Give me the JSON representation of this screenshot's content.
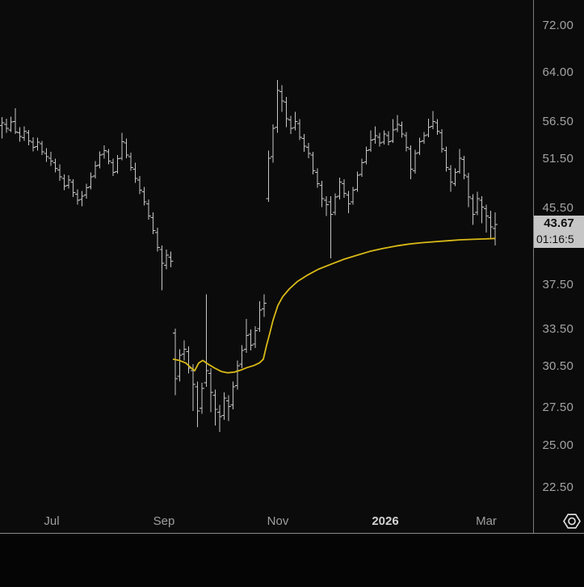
{
  "chart_data": {
    "type": "bar",
    "subtype": "ohlc-bars",
    "title": "",
    "scale": "log",
    "price_axis_ticks": [
      {
        "label": "72.00",
        "value": 72.0
      },
      {
        "label": "64.00",
        "value": 64.0
      },
      {
        "label": "56.50",
        "value": 56.5
      },
      {
        "label": "51.50",
        "value": 51.5
      },
      {
        "label": "45.50",
        "value": 45.5
      },
      {
        "label": "37.50",
        "value": 37.5
      },
      {
        "label": "33.50",
        "value": 33.5
      },
      {
        "label": "30.50",
        "value": 30.5
      },
      {
        "label": "27.50",
        "value": 27.5
      },
      {
        "label": "25.00",
        "value": 25.0
      },
      {
        "label": "22.50",
        "value": 22.5
      }
    ],
    "time_axis_labels": [
      {
        "label": "Jul",
        "emphasis": false
      },
      {
        "label": "Sep",
        "emphasis": false
      },
      {
        "label": "Nov",
        "emphasis": false
      },
      {
        "label": "2026",
        "emphasis": true
      },
      {
        "label": "Mar",
        "emphasis": false
      }
    ],
    "last_price": {
      "price_label": "43.67",
      "time_label": "01:16:5",
      "value": 43.67
    },
    "colors": {
      "background": "#0b0b0b",
      "bar": "#c6c6c6",
      "overlay_line": "#d9ba17",
      "axis_text": "#a3a3a3",
      "price_tag_bg": "#c6c6c6",
      "price_tag_text": "#101010"
    },
    "bars_ohlc": [
      [
        56.0,
        57.2,
        54.2,
        56.4
      ],
      [
        56.2,
        57.0,
        55.0,
        55.6
      ],
      [
        55.4,
        57.3,
        55.1,
        56.5
      ],
      [
        56.6,
        58.5,
        54.8,
        55.1
      ],
      [
        55.0,
        55.8,
        53.8,
        54.5
      ],
      [
        54.3,
        55.9,
        53.9,
        55.2
      ],
      [
        55.0,
        55.4,
        53.3,
        53.9
      ],
      [
        53.7,
        54.4,
        52.5,
        53.0
      ],
      [
        53.1,
        54.3,
        52.6,
        53.7
      ],
      [
        53.5,
        53.9,
        52.0,
        52.4
      ],
      [
        52.2,
        52.9,
        51.1,
        51.8
      ],
      [
        51.6,
        52.4,
        50.6,
        51.2
      ],
      [
        51.0,
        51.5,
        49.8,
        50.3
      ],
      [
        50.1,
        50.8,
        48.7,
        49.2
      ],
      [
        49.0,
        49.5,
        47.6,
        48.1
      ],
      [
        48.2,
        49.4,
        47.8,
        48.8
      ],
      [
        48.6,
        48.9,
        46.8,
        47.3
      ],
      [
        47.1,
        47.7,
        45.9,
        46.4
      ],
      [
        46.5,
        47.5,
        45.7,
        46.9
      ],
      [
        47.0,
        48.4,
        46.6,
        47.9
      ],
      [
        48.0,
        49.8,
        47.7,
        49.2
      ],
      [
        49.3,
        51.2,
        49.0,
        50.6
      ],
      [
        50.7,
        52.5,
        50.3,
        52.0
      ],
      [
        52.1,
        53.3,
        51.5,
        52.6
      ],
      [
        52.4,
        52.8,
        50.8,
        51.2
      ],
      [
        51.0,
        51.5,
        49.3,
        49.8
      ],
      [
        49.9,
        52.0,
        49.6,
        51.5
      ],
      [
        51.6,
        55.0,
        51.3,
        53.8
      ],
      [
        53.6,
        54.2,
        51.6,
        52.0
      ],
      [
        51.8,
        52.3,
        50.0,
        50.4
      ],
      [
        50.2,
        51.0,
        48.5,
        49.0
      ],
      [
        48.8,
        49.3,
        47.1,
        47.6
      ],
      [
        47.4,
        48.0,
        45.8,
        46.2
      ],
      [
        46.0,
        46.5,
        44.2,
        44.6
      ],
      [
        44.4,
        45.0,
        42.6,
        43.0
      ],
      [
        42.8,
        43.3,
        40.8,
        41.2
      ],
      [
        41.0,
        41.4,
        37.0,
        39.6
      ],
      [
        39.4,
        41.0,
        39.0,
        40.4
      ],
      [
        40.2,
        40.8,
        39.2,
        39.8
      ],
      [
        33.2,
        33.6,
        28.4,
        29.6
      ],
      [
        29.8,
        31.9,
        29.4,
        31.4
      ],
      [
        31.5,
        32.6,
        31.0,
        31.9
      ],
      [
        31.7,
        32.1,
        30.0,
        30.4
      ],
      [
        30.2,
        30.7,
        27.3,
        29.2
      ],
      [
        29.0,
        29.4,
        26.2,
        27.3
      ],
      [
        27.5,
        29.3,
        27.1,
        28.9
      ],
      [
        29.3,
        36.6,
        29.0,
        30.2
      ],
      [
        30.0,
        30.4,
        27.2,
        28.6
      ],
      [
        28.4,
        28.8,
        26.3,
        27.4
      ],
      [
        27.2,
        27.7,
        25.9,
        26.9
      ],
      [
        27.0,
        28.6,
        26.7,
        28.2
      ],
      [
        28.0,
        28.4,
        26.6,
        27.6
      ],
      [
        27.7,
        29.4,
        27.4,
        29.0
      ],
      [
        29.1,
        31.0,
        28.8,
        30.6
      ],
      [
        30.7,
        32.2,
        30.4,
        31.8
      ],
      [
        31.9,
        34.4,
        31.6,
        33.0
      ],
      [
        33.1,
        33.5,
        31.8,
        32.2
      ],
      [
        32.3,
        33.8,
        32.0,
        33.4
      ],
      [
        33.6,
        36.0,
        33.3,
        35.2
      ],
      [
        35.3,
        36.6,
        34.6,
        35.8
      ],
      [
        46.6,
        52.6,
        46.2,
        51.6
      ],
      [
        51.8,
        56.2,
        51.0,
        55.6
      ],
      [
        55.8,
        62.8,
        55.0,
        61.2
      ],
      [
        61.0,
        62.0,
        58.0,
        59.6
      ],
      [
        59.4,
        60.2,
        55.8,
        57.0
      ],
      [
        56.8,
        57.4,
        54.8,
        55.6
      ],
      [
        55.7,
        58.0,
        55.3,
        56.6
      ],
      [
        56.3,
        56.9,
        54.0,
        54.4
      ],
      [
        54.2,
        54.8,
        52.4,
        53.2
      ],
      [
        53.0,
        53.6,
        51.6,
        52.2
      ],
      [
        52.0,
        52.4,
        49.5,
        50.0
      ],
      [
        49.8,
        50.3,
        47.9,
        48.4
      ],
      [
        48.2,
        48.7,
        45.6,
        46.6
      ],
      [
        46.4,
        46.9,
        44.6,
        45.9
      ],
      [
        46.2,
        46.9,
        40.1,
        44.8
      ],
      [
        45.0,
        47.2,
        44.7,
        46.8
      ],
      [
        46.9,
        49.1,
        46.5,
        48.6
      ],
      [
        48.4,
        48.9,
        46.7,
        47.2
      ],
      [
        47.0,
        47.5,
        44.9,
        46.0
      ],
      [
        46.2,
        48.0,
        45.9,
        47.6
      ],
      [
        47.7,
        49.9,
        47.4,
        49.4
      ],
      [
        49.5,
        51.5,
        49.2,
        51.0
      ],
      [
        51.1,
        53.1,
        50.8,
        52.6
      ],
      [
        52.7,
        55.3,
        52.4,
        54.0
      ],
      [
        54.1,
        55.9,
        53.5,
        54.6
      ],
      [
        54.4,
        55.0,
        53.1,
        53.6
      ],
      [
        53.7,
        55.3,
        53.4,
        54.8
      ],
      [
        54.6,
        55.2,
        53.3,
        53.8
      ],
      [
        53.9,
        56.9,
        53.6,
        55.4
      ],
      [
        55.5,
        57.5,
        55.1,
        56.2
      ],
      [
        56.0,
        56.6,
        54.3,
        54.8
      ],
      [
        54.6,
        55.1,
        52.5,
        53.0
      ],
      [
        52.8,
        53.3,
        48.9,
        50.2
      ],
      [
        50.0,
        52.7,
        49.6,
        52.2
      ],
      [
        52.3,
        54.3,
        52.0,
        53.8
      ],
      [
        53.9,
        55.1,
        53.5,
        54.6
      ],
      [
        54.7,
        57.0,
        54.4,
        55.8
      ],
      [
        55.9,
        58.1,
        55.5,
        56.6
      ],
      [
        56.4,
        56.9,
        54.7,
        55.2
      ],
      [
        55.0,
        55.5,
        52.3,
        52.8
      ],
      [
        52.6,
        53.1,
        49.9,
        50.4
      ],
      [
        50.2,
        50.7,
        47.4,
        48.6
      ],
      [
        48.4,
        50.3,
        48.1,
        49.8
      ],
      [
        49.9,
        52.8,
        49.6,
        51.6
      ],
      [
        51.4,
        51.9,
        48.9,
        49.4
      ],
      [
        49.2,
        49.7,
        45.6,
        46.8
      ],
      [
        46.6,
        47.1,
        43.6,
        44.8
      ],
      [
        45.0,
        47.4,
        44.7,
        46.6
      ],
      [
        46.4,
        46.9,
        43.8,
        45.6
      ],
      [
        45.4,
        45.9,
        42.8,
        44.6
      ],
      [
        44.4,
        45.2,
        42.2,
        43.4
      ],
      [
        43.2,
        45.0,
        41.4,
        43.67
      ]
    ],
    "overlay_line": {
      "name": "yellow-average-line",
      "points": [
        [
          214,
          31.1
        ],
        [
          222,
          31.0
        ],
        [
          230,
          30.8
        ],
        [
          237,
          30.4
        ],
        [
          241,
          30.2
        ],
        [
          246,
          30.8
        ],
        [
          251,
          31.0
        ],
        [
          258,
          30.7
        ],
        [
          266,
          30.4
        ],
        [
          274,
          30.15
        ],
        [
          282,
          30.05
        ],
        [
          290,
          30.1
        ],
        [
          298,
          30.25
        ],
        [
          306,
          30.45
        ],
        [
          314,
          30.6
        ],
        [
          321,
          30.8
        ],
        [
          326,
          31.1
        ],
        [
          330,
          32.2
        ],
        [
          334,
          33.2
        ],
        [
          338,
          34.3
        ],
        [
          344,
          35.6
        ],
        [
          350,
          36.4
        ],
        [
          358,
          37.1
        ],
        [
          368,
          37.8
        ],
        [
          380,
          38.4
        ],
        [
          394,
          39.0
        ],
        [
          410,
          39.5
        ],
        [
          426,
          40.0
        ],
        [
          442,
          40.4
        ],
        [
          458,
          40.8
        ],
        [
          474,
          41.1
        ],
        [
          490,
          41.35
        ],
        [
          506,
          41.55
        ],
        [
          522,
          41.7
        ],
        [
          538,
          41.8
        ],
        [
          554,
          41.9
        ],
        [
          570,
          42.0
        ],
        [
          586,
          42.05
        ],
        [
          600,
          42.1
        ],
        [
          613,
          42.15
        ]
      ]
    }
  },
  "icons": {
    "settings_hexagon": "hexagon-nut"
  }
}
